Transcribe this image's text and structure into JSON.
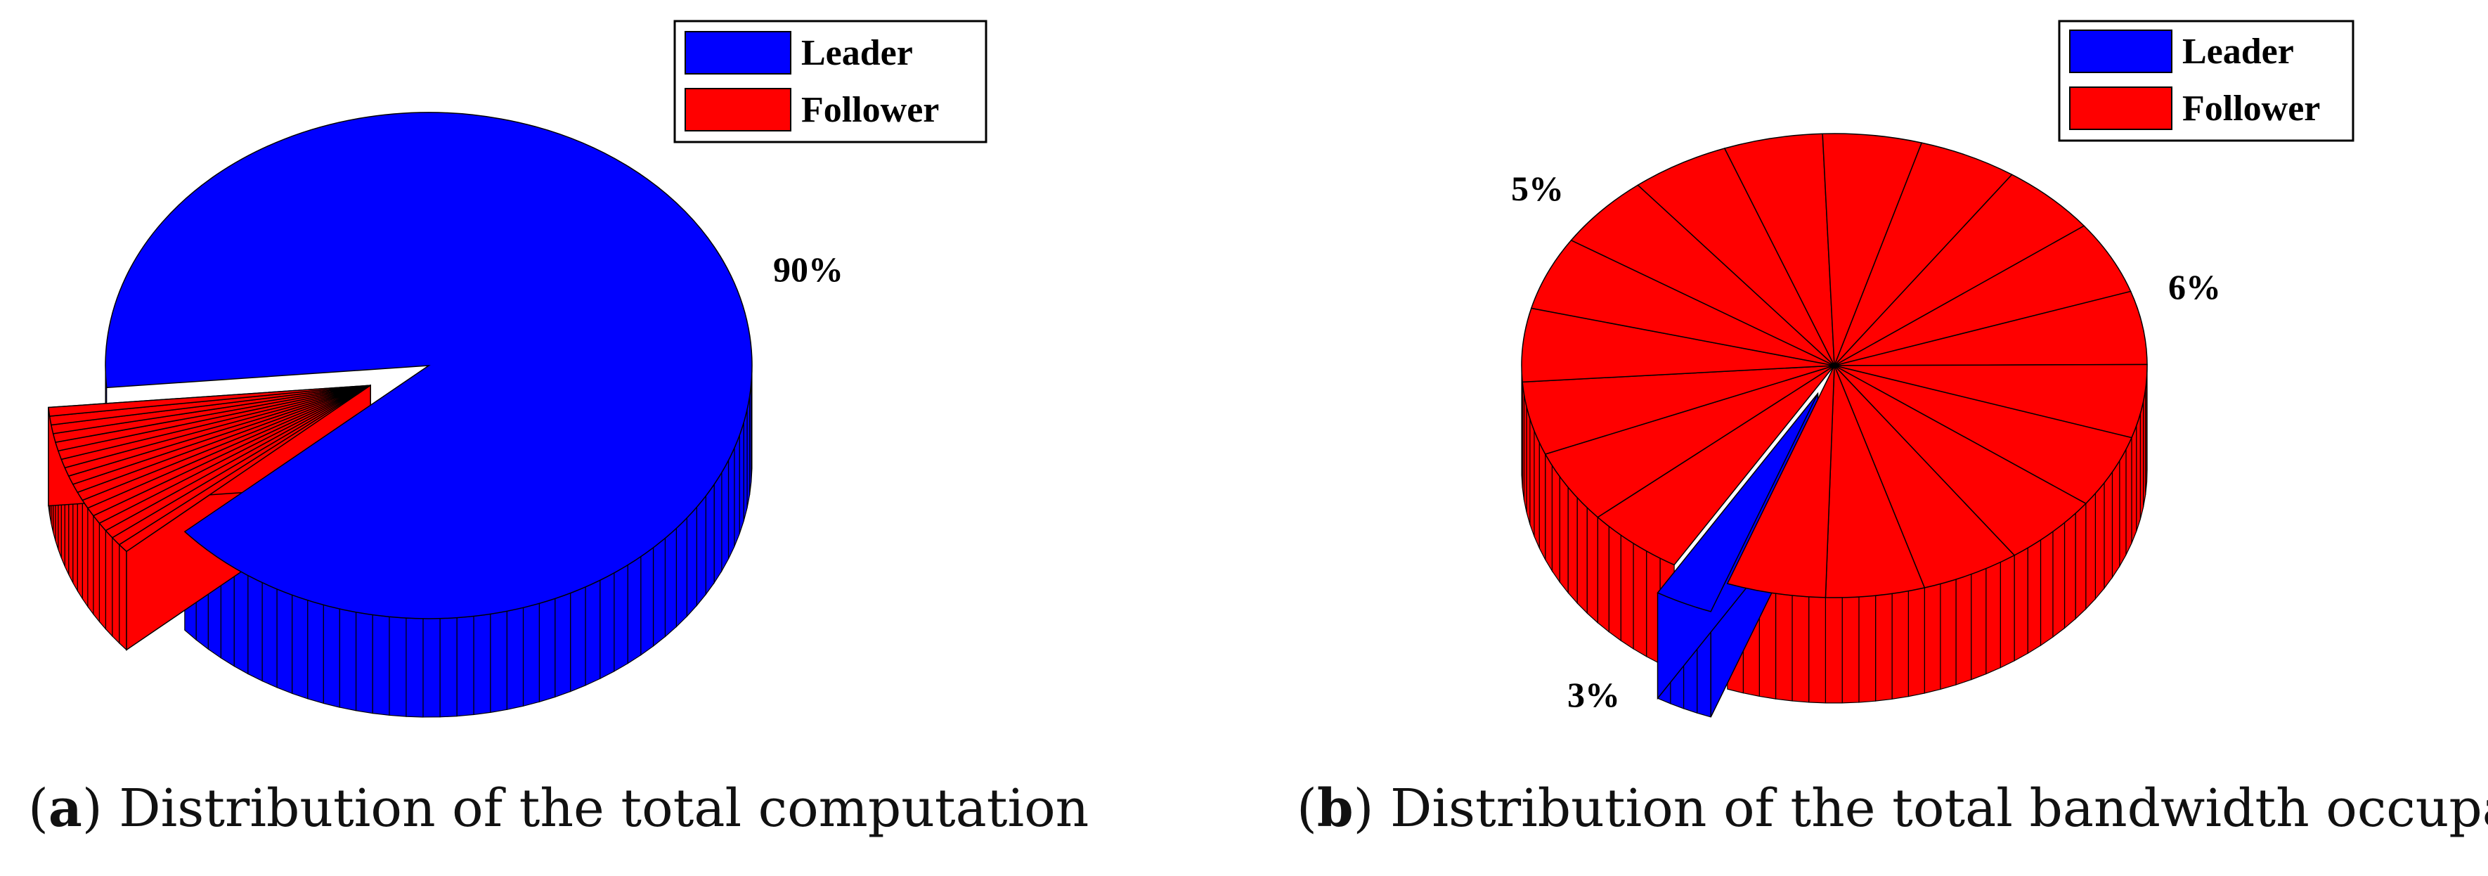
{
  "chart_data": [
    {
      "type": "pie",
      "style": "3d-exploded",
      "panel_letter": "a",
      "caption": "Distribution of the total computation",
      "legend": {
        "position": "top-right",
        "entries": [
          {
            "label": "Leader",
            "color": "#0000ff"
          },
          {
            "label": "Follower",
            "color": "#ff0000"
          }
        ]
      },
      "slices": [
        {
          "series": "Leader",
          "percent": 90,
          "label": "90%"
        },
        {
          "series": "Follower",
          "percent": 10,
          "label": "",
          "subdivisions": 18
        }
      ],
      "exploded": "Follower"
    },
    {
      "type": "pie",
      "style": "3d-exploded",
      "panel_letter": "b",
      "caption": "Distribution of the total bandwidth occupation",
      "legend": {
        "position": "top-right",
        "entries": [
          {
            "label": "Leader",
            "color": "#0000ff"
          },
          {
            "label": "Follower",
            "color": "#ff0000"
          }
        ]
      },
      "slices": [
        {
          "series": "Leader",
          "percent": 3,
          "label": "3%"
        },
        {
          "series": "Follower",
          "percent": 97,
          "label": "",
          "subdivisions": 19
        }
      ],
      "extra_labels": [
        "5%",
        "6%"
      ],
      "exploded": "Leader"
    }
  ]
}
